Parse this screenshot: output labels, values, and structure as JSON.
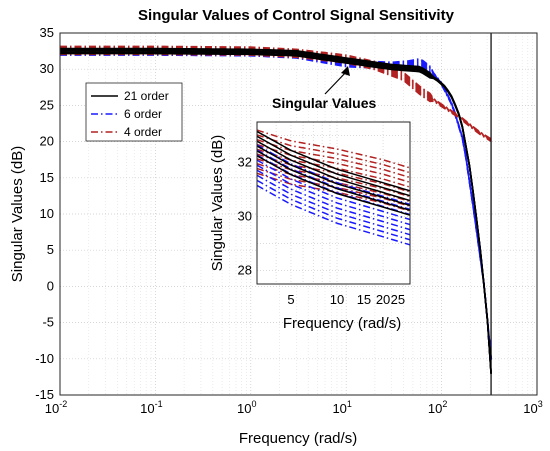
{
  "chart_data": [
    {
      "type": "line",
      "title": "Singular Values of Control Signal Sensitivity",
      "xlabel": "Frequency (rad/s)",
      "ylabel": "Singular Values (dB)",
      "xscale": "log",
      "xlim": [
        0.01,
        1000
      ],
      "ylim": [
        -15,
        35
      ],
      "grid": true,
      "xticks": [
        {
          "base": "10",
          "exp": "-2"
        },
        {
          "base": "10",
          "exp": "-1"
        },
        {
          "base": "10",
          "exp": "0"
        },
        {
          "base": "10",
          "exp": "1"
        },
        {
          "base": "10",
          "exp": "2"
        },
        {
          "base": "10",
          "exp": "3"
        }
      ],
      "yticks": [
        "-15",
        "-10",
        "-5",
        "0",
        "5",
        "10",
        "15",
        "20",
        "25",
        "30",
        "35"
      ],
      "legend_position": "upper-left",
      "series": [
        {
          "name": "21 order",
          "color": "#000000",
          "style": "solid",
          "x": [
            0.01,
            0.1,
            1,
            3,
            10,
            30,
            60,
            90,
            110,
            130,
            160,
            200,
            250,
            300,
            330
          ],
          "y": [
            32.5,
            32.5,
            32.4,
            32.2,
            31.2,
            30.3,
            30.0,
            28.5,
            27.5,
            26.0,
            23.0,
            16.0,
            6.0,
            -4.0,
            -12.0
          ]
        },
        {
          "name": "6 order",
          "color": "#1a1aff",
          "style": "dashdot",
          "x": [
            0.01,
            0.1,
            1,
            3,
            10,
            30,
            45,
            60,
            75,
            100,
            130,
            170,
            220,
            280,
            330
          ],
          "y": [
            32.4,
            32.4,
            32.3,
            32.0,
            30.8,
            30.5,
            30.7,
            31.0,
            30.0,
            28.0,
            25.0,
            20.0,
            10.0,
            0.0,
            -10.0
          ]
        },
        {
          "name": "4 order",
          "color": "#b22222",
          "style": "dashdot",
          "x": [
            0.01,
            0.1,
            1,
            3,
            10,
            20,
            40,
            60,
            100,
            150,
            200,
            250,
            330
          ],
          "y": [
            32.6,
            32.6,
            32.5,
            32.2,
            31.4,
            30.5,
            29.0,
            27.0,
            25.0,
            23.5,
            22.2,
            21.2,
            20.2
          ]
        }
      ],
      "annotation": {
        "text": "Singular Values"
      }
    },
    {
      "type": "line",
      "title": "",
      "xlabel": "Frequency (rad/s)",
      "ylabel": "Singular Values (dB)",
      "xscale": "log",
      "xlim": [
        3,
        30
      ],
      "ylim": [
        27.5,
        33.5
      ],
      "grid": true,
      "xticks": [
        "5",
        "10",
        "15",
        "20",
        "25"
      ],
      "yticks": [
        "28",
        "30",
        "32"
      ],
      "series": [
        {
          "name": "21 order",
          "color": "#000000",
          "style": "solid",
          "x": [
            3,
            5,
            10,
            20,
            30
          ],
          "y": [
            32.7,
            32.0,
            31.3,
            30.8,
            30.5
          ]
        },
        {
          "name": "6 order",
          "color": "#1a1aff",
          "style": "dashdot",
          "x": [
            3,
            5,
            10,
            20,
            30
          ],
          "y": [
            31.9,
            31.2,
            30.5,
            30.0,
            29.7
          ]
        },
        {
          "name": "4 order",
          "color": "#b22222",
          "style": "dashdot",
          "x": [
            3,
            5,
            10,
            20,
            30
          ],
          "y": [
            32.4,
            32.0,
            31.7,
            31.3,
            31.0
          ]
        }
      ]
    }
  ]
}
